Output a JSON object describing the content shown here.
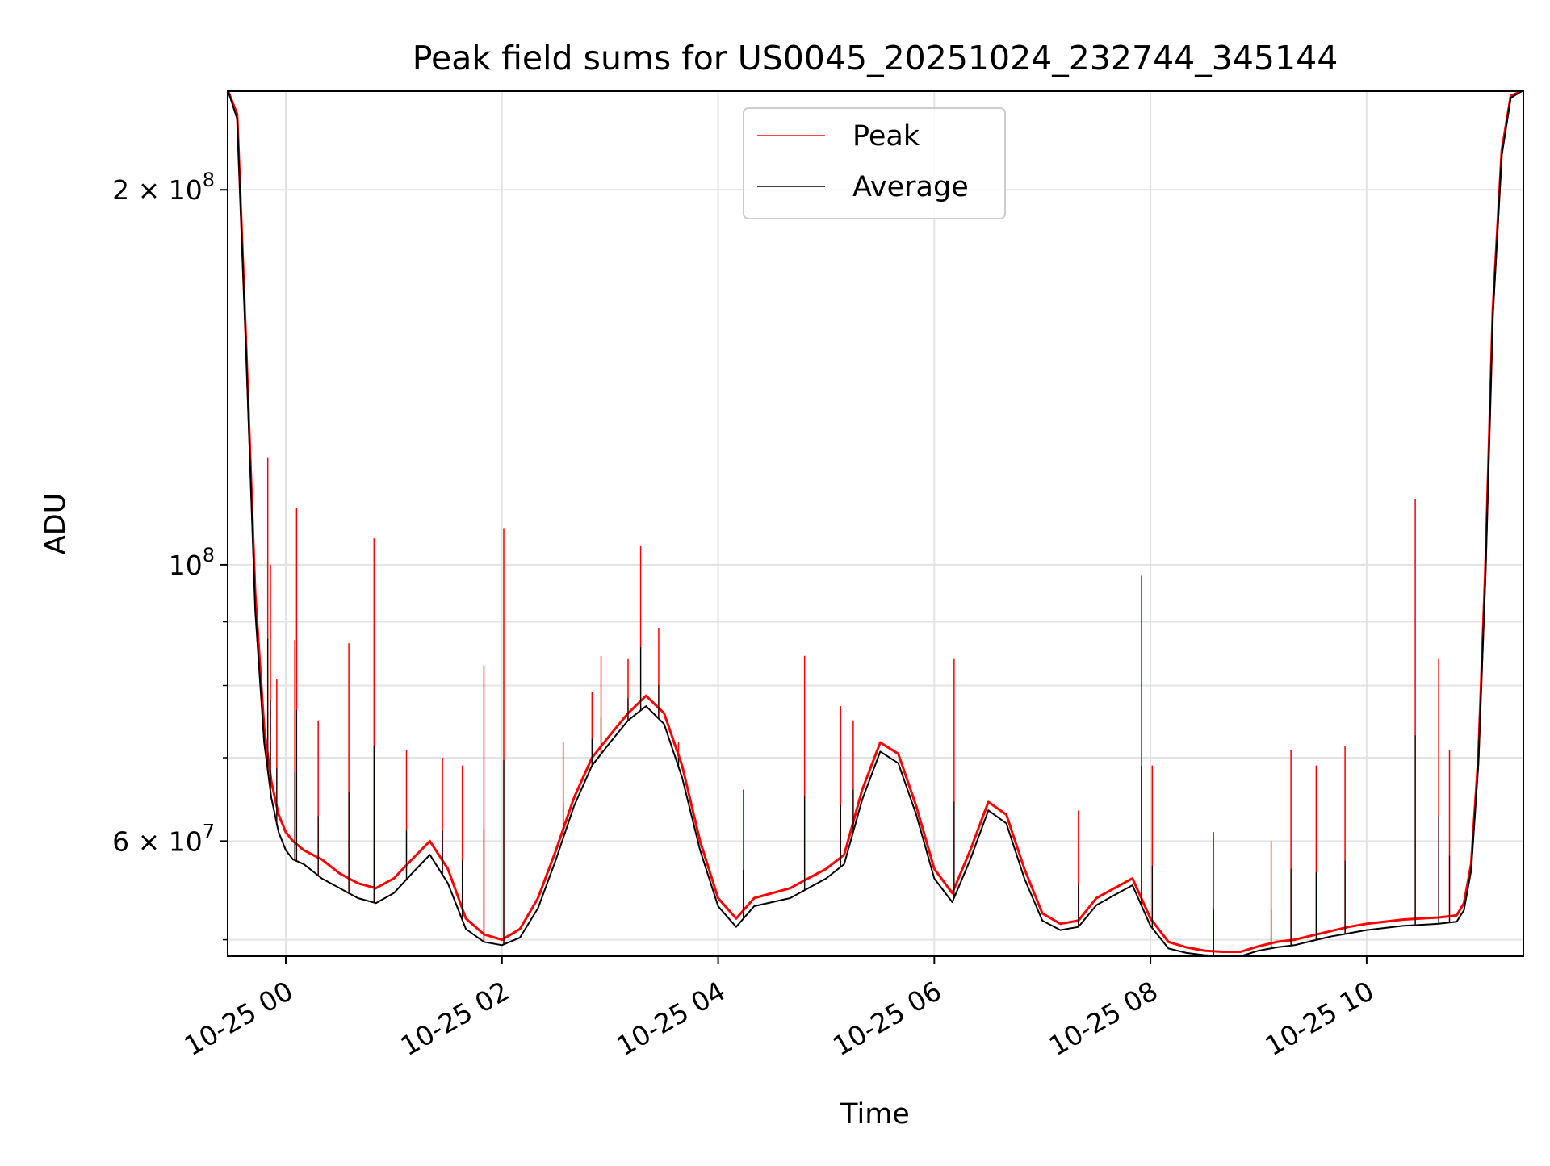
{
  "chart_data": {
    "type": "line",
    "title": "Peak field sums for US0045_20251024_232744_345144",
    "xlabel": "Time",
    "ylabel": "ADU",
    "x_type": "datetime",
    "xlim": [
      "2025-10-24T23:27:44",
      "2025-10-25T11:27:00"
    ],
    "ylim": [
      48500000,
      240000000
    ],
    "yscale": "log",
    "grid": true,
    "legend_position": "top-center",
    "x_ticks": [
      {
        "value": "2025-10-25T00:00:00",
        "label": "10-25 00"
      },
      {
        "value": "2025-10-25T02:00:00",
        "label": "10-25 02"
      },
      {
        "value": "2025-10-25T04:00:00",
        "label": "10-25 04"
      },
      {
        "value": "2025-10-25T06:00:00",
        "label": "10-25 06"
      },
      {
        "value": "2025-10-25T08:00:00",
        "label": "10-25 08"
      },
      {
        "value": "2025-10-25T10:00:00",
        "label": "10-25 10"
      }
    ],
    "y_ticks": [
      {
        "value": 60000000,
        "label_main": "6",
        "label_mid": " × 10",
        "label_exp": "7"
      },
      {
        "value": 100000000,
        "label_main": "",
        "label_mid": "10",
        "label_exp": "8"
      },
      {
        "value": 200000000,
        "label_main": "2",
        "label_mid": " × 10",
        "label_exp": "8"
      }
    ],
    "y_minor_ticks": [
      50000000,
      70000000,
      80000000,
      90000000
    ],
    "series": [
      {
        "name": "Peak",
        "color": "#ff0000",
        "x": [
          "2025-10-24T23:28:00",
          "2025-10-24T23:33:00",
          "2025-10-24T23:38:00",
          "2025-10-24T23:43:00",
          "2025-10-24T23:48:00",
          "2025-10-24T23:52:00",
          "2025-10-24T23:56:00",
          "2025-10-25T00:00:00",
          "2025-10-25T00:04:00",
          "2025-10-25T00:10:00",
          "2025-10-25T00:20:00",
          "2025-10-25T00:30:00",
          "2025-10-25T00:40:00",
          "2025-10-25T00:50:00",
          "2025-10-25T01:00:00",
          "2025-10-25T01:10:00",
          "2025-10-25T01:20:00",
          "2025-10-25T01:30:00",
          "2025-10-25T01:40:00",
          "2025-10-25T01:50:00",
          "2025-10-25T02:00:00",
          "2025-10-25T02:10:00",
          "2025-10-25T02:20:00",
          "2025-10-25T02:30:00",
          "2025-10-25T02:40:00",
          "2025-10-25T02:50:00",
          "2025-10-25T03:00:00",
          "2025-10-25T03:10:00",
          "2025-10-25T03:20:00",
          "2025-10-25T03:30:00",
          "2025-10-25T03:40:00",
          "2025-10-25T03:50:00",
          "2025-10-25T04:00:00",
          "2025-10-25T04:10:00",
          "2025-10-25T04:20:00",
          "2025-10-25T04:30:00",
          "2025-10-25T04:40:00",
          "2025-10-25T04:50:00",
          "2025-10-25T05:00:00",
          "2025-10-25T05:10:00",
          "2025-10-25T05:20:00",
          "2025-10-25T05:30:00",
          "2025-10-25T05:40:00",
          "2025-10-25T05:50:00",
          "2025-10-25T06:00:00",
          "2025-10-25T06:10:00",
          "2025-10-25T06:20:00",
          "2025-10-25T06:30:00",
          "2025-10-25T06:40:00",
          "2025-10-25T06:50:00",
          "2025-10-25T07:00:00",
          "2025-10-25T07:10:00",
          "2025-10-25T07:20:00",
          "2025-10-25T07:30:00",
          "2025-10-25T07:40:00",
          "2025-10-25T07:50:00",
          "2025-10-25T08:00:00",
          "2025-10-25T08:10:00",
          "2025-10-25T08:20:00",
          "2025-10-25T08:30:00",
          "2025-10-25T08:40:00",
          "2025-10-25T08:50:00",
          "2025-10-25T09:00:00",
          "2025-10-25T09:10:00",
          "2025-10-25T09:20:00",
          "2025-10-25T09:30:00",
          "2025-10-25T09:40:00",
          "2025-10-25T09:50:00",
          "2025-10-25T10:00:00",
          "2025-10-25T10:10:00",
          "2025-10-25T10:20:00",
          "2025-10-25T10:30:00",
          "2025-10-25T10:40:00",
          "2025-10-25T10:50:00",
          "2025-10-25T10:54:00",
          "2025-10-25T10:58:00",
          "2025-10-25T11:02:00",
          "2025-10-25T11:06:00",
          "2025-10-25T11:10:00",
          "2025-10-25T11:15:00",
          "2025-10-25T11:20:00",
          "2025-10-25T11:26:00"
        ],
        "values": [
          240000000,
          230000000,
          150000000,
          95000000,
          74000000,
          67000000,
          63000000,
          61000000,
          60000000,
          59000000,
          58000000,
          56500000,
          55500000,
          55000000,
          56000000,
          58000000,
          60000000,
          57000000,
          52000000,
          50500000,
          50000000,
          51000000,
          54000000,
          59000000,
          65000000,
          70000000,
          73000000,
          76000000,
          78500000,
          76000000,
          69000000,
          60000000,
          54000000,
          52000000,
          54000000,
          54500000,
          55000000,
          56000000,
          57000000,
          58500000,
          66000000,
          72000000,
          70500000,
          64000000,
          57000000,
          54500000,
          59000000,
          64500000,
          63000000,
          57000000,
          52500000,
          51500000,
          51800000,
          54000000,
          55000000,
          56000000,
          52000000,
          49800000,
          49300000,
          49000000,
          48900000,
          48900000,
          49400000,
          49800000,
          50000000,
          50400000,
          50800000,
          51200000,
          51500000,
          51700000,
          51900000,
          52000000,
          52100000,
          52300000,
          53500000,
          57500000,
          70000000,
          100000000,
          160000000,
          215000000,
          238000000,
          240000000
        ]
      },
      {
        "name": "Average",
        "color": "#000000",
        "x": [
          "2025-10-24T23:28:00",
          "2025-10-24T23:33:00",
          "2025-10-24T23:38:00",
          "2025-10-24T23:43:00",
          "2025-10-24T23:48:00",
          "2025-10-24T23:52:00",
          "2025-10-24T23:56:00",
          "2025-10-25T00:00:00",
          "2025-10-25T00:04:00",
          "2025-10-25T00:10:00",
          "2025-10-25T00:20:00",
          "2025-10-25T00:30:00",
          "2025-10-25T00:40:00",
          "2025-10-25T00:50:00",
          "2025-10-25T01:00:00",
          "2025-10-25T01:10:00",
          "2025-10-25T01:20:00",
          "2025-10-25T01:30:00",
          "2025-10-25T01:40:00",
          "2025-10-25T01:50:00",
          "2025-10-25T02:00:00",
          "2025-10-25T02:10:00",
          "2025-10-25T02:20:00",
          "2025-10-25T02:30:00",
          "2025-10-25T02:40:00",
          "2025-10-25T02:50:00",
          "2025-10-25T03:00:00",
          "2025-10-25T03:10:00",
          "2025-10-25T03:20:00",
          "2025-10-25T03:30:00",
          "2025-10-25T03:40:00",
          "2025-10-25T03:50:00",
          "2025-10-25T04:00:00",
          "2025-10-25T04:10:00",
          "2025-10-25T04:20:00",
          "2025-10-25T04:30:00",
          "2025-10-25T04:40:00",
          "2025-10-25T04:50:00",
          "2025-10-25T05:00:00",
          "2025-10-25T05:10:00",
          "2025-10-25T05:20:00",
          "2025-10-25T05:30:00",
          "2025-10-25T05:40:00",
          "2025-10-25T05:50:00",
          "2025-10-25T06:00:00",
          "2025-10-25T06:10:00",
          "2025-10-25T06:20:00",
          "2025-10-25T06:30:00",
          "2025-10-25T06:40:00",
          "2025-10-25T06:50:00",
          "2025-10-25T07:00:00",
          "2025-10-25T07:10:00",
          "2025-10-25T07:20:00",
          "2025-10-25T07:30:00",
          "2025-10-25T07:40:00",
          "2025-10-25T07:50:00",
          "2025-10-25T08:00:00",
          "2025-10-25T08:10:00",
          "2025-10-25T08:20:00",
          "2025-10-25T08:30:00",
          "2025-10-25T08:40:00",
          "2025-10-25T08:50:00",
          "2025-10-25T09:00:00",
          "2025-10-25T09:10:00",
          "2025-10-25T09:20:00",
          "2025-10-25T09:30:00",
          "2025-10-25T09:40:00",
          "2025-10-25T09:50:00",
          "2025-10-25T10:00:00",
          "2025-10-25T10:10:00",
          "2025-10-25T10:20:00",
          "2025-10-25T10:30:00",
          "2025-10-25T10:40:00",
          "2025-10-25T10:50:00",
          "2025-10-25T10:54:00",
          "2025-10-25T10:58:00",
          "2025-10-25T11:02:00",
          "2025-10-25T11:06:00",
          "2025-10-25T11:10:00",
          "2025-10-25T11:15:00",
          "2025-10-25T11:20:00",
          "2025-10-25T11:26:00"
        ],
        "values": [
          240000000,
          228000000,
          148000000,
          92000000,
          72000000,
          65000000,
          61000000,
          59000000,
          58000000,
          57500000,
          56000000,
          55000000,
          54000000,
          53500000,
          54500000,
          56500000,
          58500000,
          55500000,
          51000000,
          49800000,
          49500000,
          50200000,
          53000000,
          58000000,
          64000000,
          69000000,
          72000000,
          75000000,
          77000000,
          74500000,
          67500000,
          59000000,
          53200000,
          51200000,
          53200000,
          53600000,
          54000000,
          55000000,
          56000000,
          57500000,
          64800000,
          70800000,
          69300000,
          63000000,
          56000000,
          53600000,
          58000000,
          63500000,
          62000000,
          56000000,
          51800000,
          50900000,
          51200000,
          53300000,
          54300000,
          55300000,
          51300000,
          49200000,
          48800000,
          48600000,
          48500000,
          48500000,
          49000000,
          49300000,
          49500000,
          49900000,
          50300000,
          50600000,
          50900000,
          51100000,
          51300000,
          51400000,
          51500000,
          51700000,
          52800000,
          56800000,
          69000000,
          98000000,
          158000000,
          213000000,
          237000000,
          240000000
        ]
      }
    ],
    "spikes": [
      {
        "x": "2025-10-24T23:50:00",
        "value": 122000000
      },
      {
        "x": "2025-10-24T23:51:30",
        "value": 100000000
      },
      {
        "x": "2025-10-24T23:55:00",
        "value": 81000000
      },
      {
        "x": "2025-10-25T00:05:00",
        "value": 87000000
      },
      {
        "x": "2025-10-25T00:06:00",
        "value": 111000000
      },
      {
        "x": "2025-10-25T00:18:00",
        "value": 75000000
      },
      {
        "x": "2025-10-25T00:35:00",
        "value": 86500000
      },
      {
        "x": "2025-10-25T00:49:00",
        "value": 105000000
      },
      {
        "x": "2025-10-25T01:07:00",
        "value": 71000000
      },
      {
        "x": "2025-10-25T01:27:00",
        "value": 70000000
      },
      {
        "x": "2025-10-25T01:38:00",
        "value": 69000000
      },
      {
        "x": "2025-10-25T01:50:00",
        "value": 83000000
      },
      {
        "x": "2025-10-25T02:01:00",
        "value": 107000000
      },
      {
        "x": "2025-10-25T02:34:00",
        "value": 72000000
      },
      {
        "x": "2025-10-25T02:50:00",
        "value": 79000000
      },
      {
        "x": "2025-10-25T02:55:00",
        "value": 84500000
      },
      {
        "x": "2025-10-25T03:10:00",
        "value": 84000000
      },
      {
        "x": "2025-10-25T03:17:00",
        "value": 103500000
      },
      {
        "x": "2025-10-25T03:27:00",
        "value": 89000000
      },
      {
        "x": "2025-10-25T03:38:00",
        "value": 72000000
      },
      {
        "x": "2025-10-25T04:14:00",
        "value": 66000000
      },
      {
        "x": "2025-10-25T04:48:00",
        "value": 84500000
      },
      {
        "x": "2025-10-25T05:08:00",
        "value": 77000000
      },
      {
        "x": "2025-10-25T05:15:00",
        "value": 75000000
      },
      {
        "x": "2025-10-25T06:11:00",
        "value": 84000000
      },
      {
        "x": "2025-10-25T07:20:00",
        "value": 63500000
      },
      {
        "x": "2025-10-25T07:55:00",
        "value": 98000000
      },
      {
        "x": "2025-10-25T08:01:00",
        "value": 69000000
      },
      {
        "x": "2025-10-25T08:35:00",
        "value": 61000000
      },
      {
        "x": "2025-10-25T09:07:00",
        "value": 60000000
      },
      {
        "x": "2025-10-25T09:18:00",
        "value": 71000000
      },
      {
        "x": "2025-10-25T09:32:00",
        "value": 69000000
      },
      {
        "x": "2025-10-25T09:48:00",
        "value": 71500000
      },
      {
        "x": "2025-10-25T10:27:00",
        "value": 113000000
      },
      {
        "x": "2025-10-25T10:40:00",
        "value": 84000000
      },
      {
        "x": "2025-10-25T10:46:00",
        "value": 71000000
      }
    ]
  }
}
